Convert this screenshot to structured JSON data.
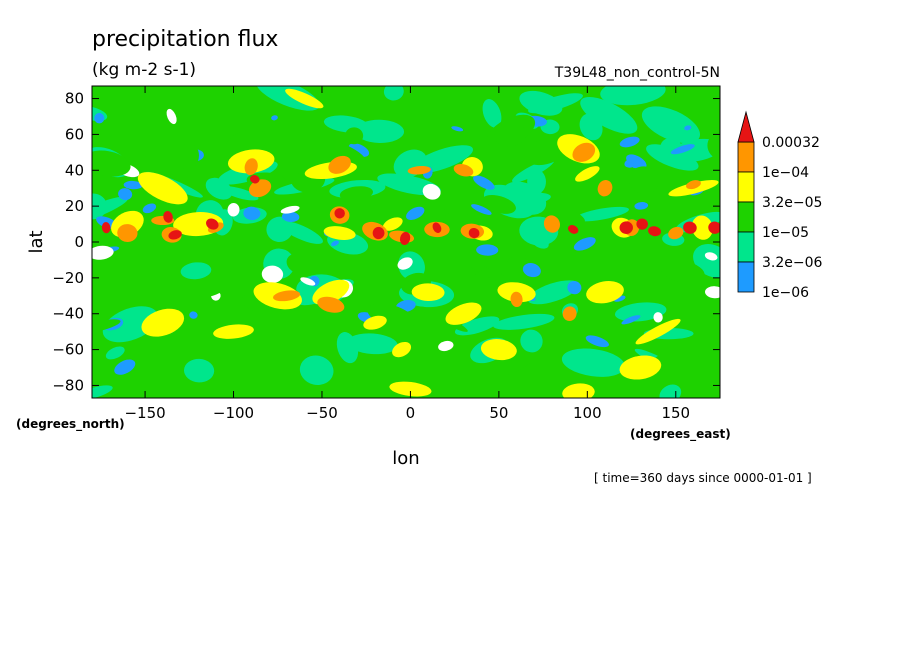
{
  "chart_data": {
    "type": "heatmap",
    "title": "precipitation flux",
    "units": "(kg m-2 s-1)",
    "experiment": "T39L48_non_control-5N",
    "xlabel": "lon",
    "ylabel": "lat",
    "xunits": "(degrees_east)",
    "yunits": "(degrees_north)",
    "time_label": "[ time=360 days since 0000-01-01 ]",
    "xlim": [
      -180,
      175
    ],
    "ylim": [
      -87,
      87
    ],
    "x_ticks": [
      -150,
      -100,
      -50,
      0,
      50,
      100,
      150
    ],
    "y_ticks": [
      -80,
      -60,
      -40,
      -20,
      0,
      20,
      40,
      60,
      80
    ],
    "grid": false,
    "legend_position": "right",
    "colorbar": {
      "levels": [
        "1e-06",
        "3.2e-06",
        "1e-05",
        "3.2e-05",
        "1e-04",
        "0.00032"
      ],
      "colors": [
        "#ffffff",
        "#1e9bff",
        "#00e68c",
        "#1ed200",
        "#ffff00",
        "#ff9600",
        "#e61414"
      ]
    }
  }
}
